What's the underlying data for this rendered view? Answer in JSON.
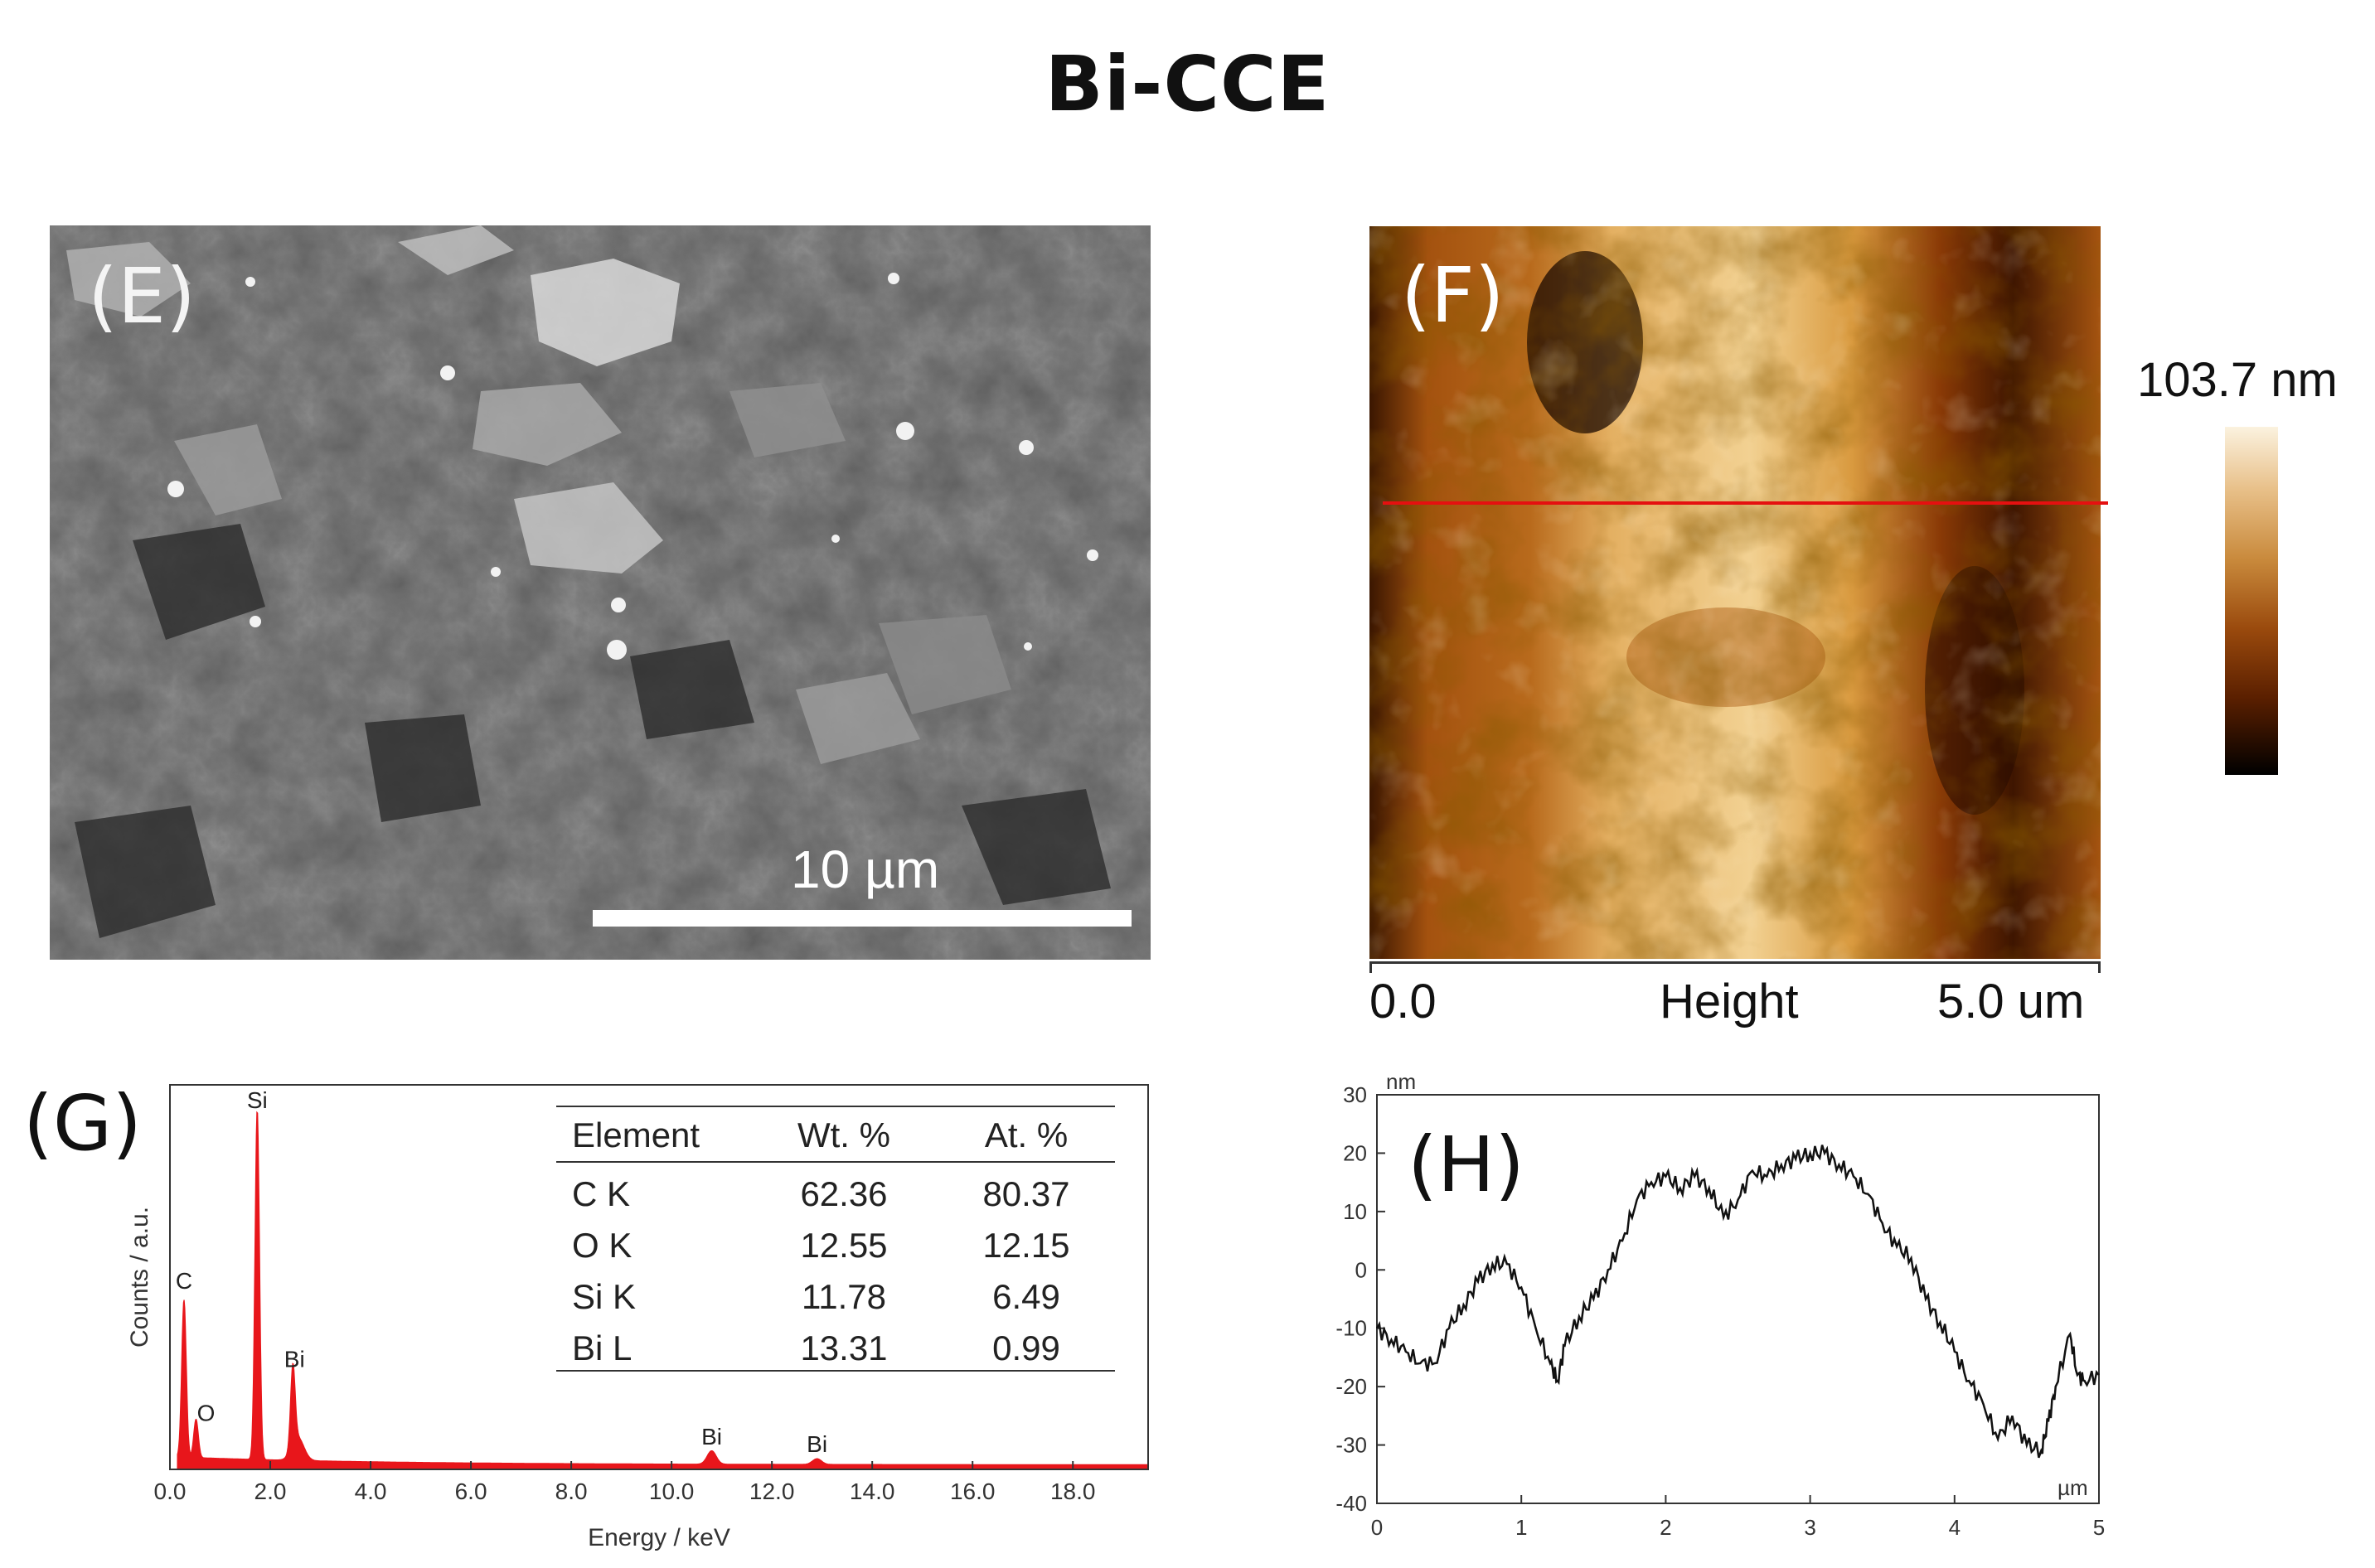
{
  "figure_title": "Bi-CCE",
  "panels": {
    "E": {
      "label": "(E)",
      "scale_bar_label": "10 µm"
    },
    "F": {
      "label": "(F)",
      "colorbar_max_label": "103.7 nm",
      "axis_left": "0.0",
      "axis_center": "Height",
      "axis_right": "5.0 um"
    },
    "G": {
      "label": "(G)",
      "ylabel": "Counts / a.u.",
      "xlabel": "Energy / keV",
      "table": {
        "headers": [
          "Element",
          "Wt. %",
          "At. %"
        ],
        "rows": [
          [
            "C K",
            "62.36",
            "80.37"
          ],
          [
            "O K",
            "12.55",
            "12.15"
          ],
          [
            "Si K",
            "11.78",
            "6.49"
          ],
          [
            "Bi L",
            "13.31",
            "0.99"
          ]
        ]
      }
    },
    "H": {
      "label": "(H)",
      "yunit": "nm",
      "xunit": "µm"
    }
  },
  "chart_data": [
    {
      "type": "area",
      "panel": "G",
      "xlabel": "Energy / keV",
      "ylabel": "Counts / a.u.",
      "xlim": [
        0,
        19.5
      ],
      "x_ticks": [
        "0.0",
        "2.0",
        "4.0",
        "6.0",
        "8.0",
        "10.0",
        "12.0",
        "14.0",
        "16.0",
        "18.0"
      ],
      "x_tick_values": [
        0,
        2,
        4,
        6,
        8,
        10,
        12,
        14,
        16,
        18
      ],
      "color": "#e8161b",
      "peaks": [
        {
          "label": "C",
          "x": 0.28,
          "rel_height": 0.41
        },
        {
          "label": "O",
          "x": 0.52,
          "rel_height": 0.1
        },
        {
          "label": "Si",
          "x": 1.74,
          "rel_height": 0.91
        },
        {
          "label": "Bi",
          "x": 2.45,
          "rel_height": 0.21
        },
        {
          "label": "Bi",
          "x": 10.8,
          "rel_height": 0.035
        },
        {
          "label": "Bi",
          "x": 12.9,
          "rel_height": 0.015
        }
      ]
    },
    {
      "type": "line",
      "panel": "H",
      "xunit": "µm",
      "yunit": "nm",
      "xlim": [
        0,
        5
      ],
      "ylim": [
        -40,
        30
      ],
      "x_ticks": [
        0,
        1,
        2,
        3,
        4,
        5
      ],
      "y_ticks": [
        30,
        20,
        10,
        0,
        -10,
        -20,
        -30,
        -40
      ],
      "x": [
        0,
        0.1,
        0.2,
        0.3,
        0.4,
        0.5,
        0.6,
        0.7,
        0.8,
        0.9,
        1.0,
        1.1,
        1.2,
        1.25,
        1.3,
        1.4,
        1.5,
        1.6,
        1.7,
        1.8,
        1.9,
        2.0,
        2.1,
        2.2,
        2.3,
        2.4,
        2.5,
        2.6,
        2.7,
        2.8,
        2.9,
        3.0,
        3.1,
        3.2,
        3.3,
        3.4,
        3.5,
        3.6,
        3.7,
        3.8,
        3.9,
        4.0,
        4.1,
        4.2,
        4.3,
        4.4,
        4.5,
        4.6,
        4.65,
        4.7,
        4.8,
        4.85,
        4.9,
        5.0
      ],
      "y": [
        -10,
        -12,
        -14,
        -16,
        -16,
        -10,
        -6,
        -2,
        1,
        1,
        -3,
        -10,
        -16,
        -19,
        -13,
        -8,
        -5,
        0,
        5,
        12,
        15,
        16,
        14,
        16,
        14,
        9,
        12,
        17,
        16,
        18,
        19,
        20,
        20,
        18,
        16,
        13,
        8,
        4,
        2,
        -5,
        -9,
        -14,
        -19,
        -23,
        -29,
        -25,
        -30,
        -31,
        -26,
        -20,
        -11,
        -18,
        -19,
        -18
      ]
    }
  ]
}
